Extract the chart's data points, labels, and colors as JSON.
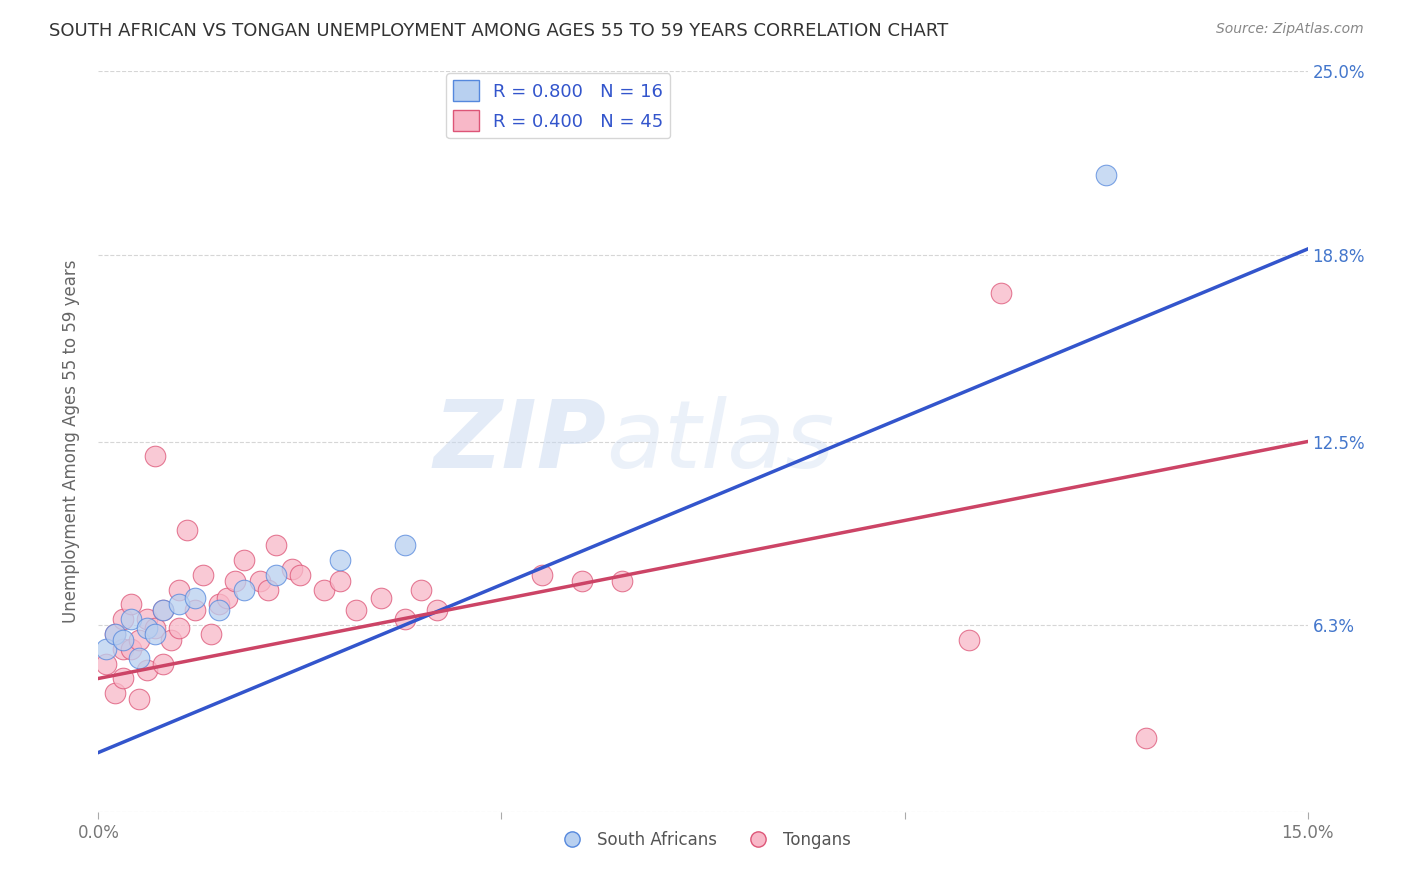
{
  "title": "SOUTH AFRICAN VS TONGAN UNEMPLOYMENT AMONG AGES 55 TO 59 YEARS CORRELATION CHART",
  "source": "Source: ZipAtlas.com",
  "ylabel": "Unemployment Among Ages 55 to 59 years",
  "xlim": [
    0.0,
    0.15
  ],
  "ylim": [
    0.0,
    0.25
  ],
  "ytick_positions": [
    0.0,
    0.063,
    0.125,
    0.188,
    0.25
  ],
  "ytick_labels": [
    "",
    "6.3%",
    "12.5%",
    "18.8%",
    "25.0%"
  ],
  "background_color": "#ffffff",
  "grid_color": "#cccccc",
  "watermark_zip": "ZIP",
  "watermark_atlas": "atlas",
  "south_africans": {
    "scatter_color": "#b8d0f0",
    "scatter_edge": "#5588dd",
    "line_color": "#3355cc",
    "R": 0.8,
    "N": 16,
    "x": [
      0.001,
      0.002,
      0.003,
      0.004,
      0.005,
      0.006,
      0.007,
      0.008,
      0.01,
      0.012,
      0.015,
      0.018,
      0.022,
      0.03,
      0.038,
      0.125
    ],
    "y": [
      0.055,
      0.06,
      0.058,
      0.065,
      0.052,
      0.062,
      0.06,
      0.068,
      0.07,
      0.072,
      0.068,
      0.075,
      0.08,
      0.085,
      0.09,
      0.215
    ]
  },
  "tongans": {
    "scatter_color": "#f8b8c8",
    "scatter_edge": "#dd5577",
    "line_color": "#cc4466",
    "R": 0.4,
    "N": 45,
    "x": [
      0.001,
      0.002,
      0.002,
      0.003,
      0.003,
      0.003,
      0.004,
      0.004,
      0.005,
      0.005,
      0.006,
      0.006,
      0.007,
      0.007,
      0.008,
      0.008,
      0.009,
      0.01,
      0.01,
      0.011,
      0.012,
      0.013,
      0.014,
      0.015,
      0.016,
      0.017,
      0.018,
      0.02,
      0.021,
      0.022,
      0.024,
      0.025,
      0.028,
      0.03,
      0.032,
      0.035,
      0.038,
      0.04,
      0.042,
      0.055,
      0.06,
      0.065,
      0.108,
      0.112,
      0.13
    ],
    "y": [
      0.05,
      0.06,
      0.04,
      0.055,
      0.065,
      0.045,
      0.07,
      0.055,
      0.058,
      0.038,
      0.065,
      0.048,
      0.12,
      0.062,
      0.068,
      0.05,
      0.058,
      0.075,
      0.062,
      0.095,
      0.068,
      0.08,
      0.06,
      0.07,
      0.072,
      0.078,
      0.085,
      0.078,
      0.075,
      0.09,
      0.082,
      0.08,
      0.075,
      0.078,
      0.068,
      0.072,
      0.065,
      0.075,
      0.068,
      0.08,
      0.078,
      0.078,
      0.058,
      0.175,
      0.025
    ]
  },
  "sa_line": {
    "x0": 0.0,
    "y0": 0.02,
    "x1": 0.15,
    "y1": 0.19
  },
  "to_line": {
    "x0": 0.0,
    "y0": 0.045,
    "x1": 0.15,
    "y1": 0.125
  }
}
